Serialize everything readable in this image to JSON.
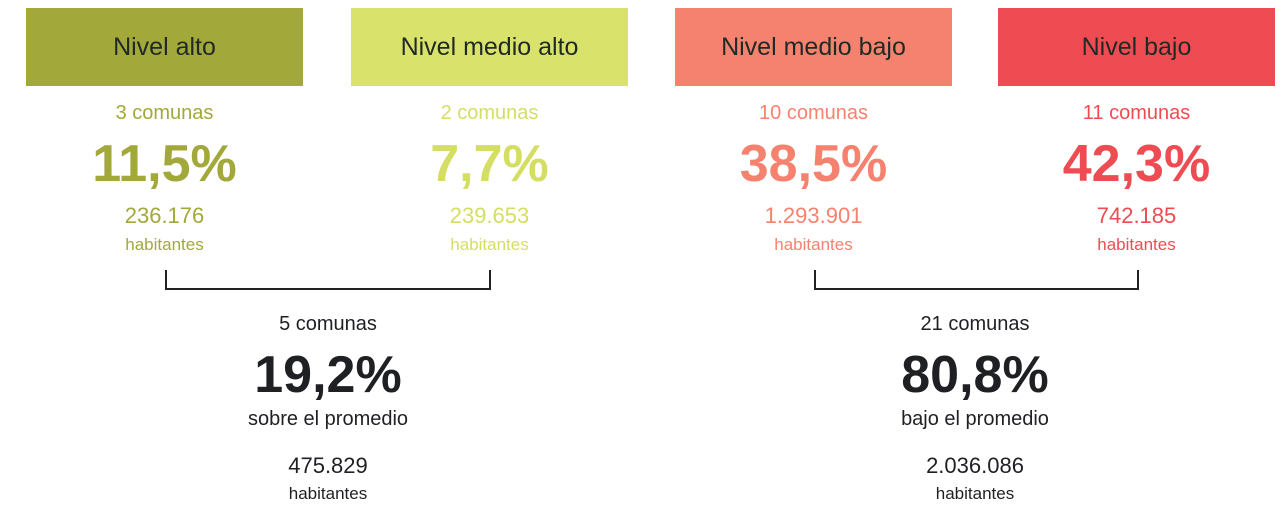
{
  "levels": [
    {
      "label": "Nivel alto",
      "comunas": "3 comunas",
      "percent": "11,5%",
      "population": "236.176",
      "unit": "habitantes"
    },
    {
      "label": "Nivel medio alto",
      "comunas": "2 comunas",
      "percent": "7,7%",
      "population": "239.653",
      "unit": "habitantes"
    },
    {
      "label": "Nivel medio bajo",
      "comunas": "10 comunas",
      "percent": "38,5%",
      "population": "1.293.901",
      "unit": "habitantes"
    },
    {
      "label": "Nivel bajo",
      "comunas": "11 comunas",
      "percent": "42,3%",
      "population": "742.185",
      "unit": "habitantes"
    }
  ],
  "groups": [
    {
      "comunas": "5 comunas",
      "percent": "19,2%",
      "description": "sobre el promedio",
      "population": "475.829",
      "unit": "habitantes"
    },
    {
      "comunas": "21 comunas",
      "percent": "80,8%",
      "description": "bajo el promedio",
      "population": "2.036.086",
      "unit": "habitantes"
    }
  ]
}
